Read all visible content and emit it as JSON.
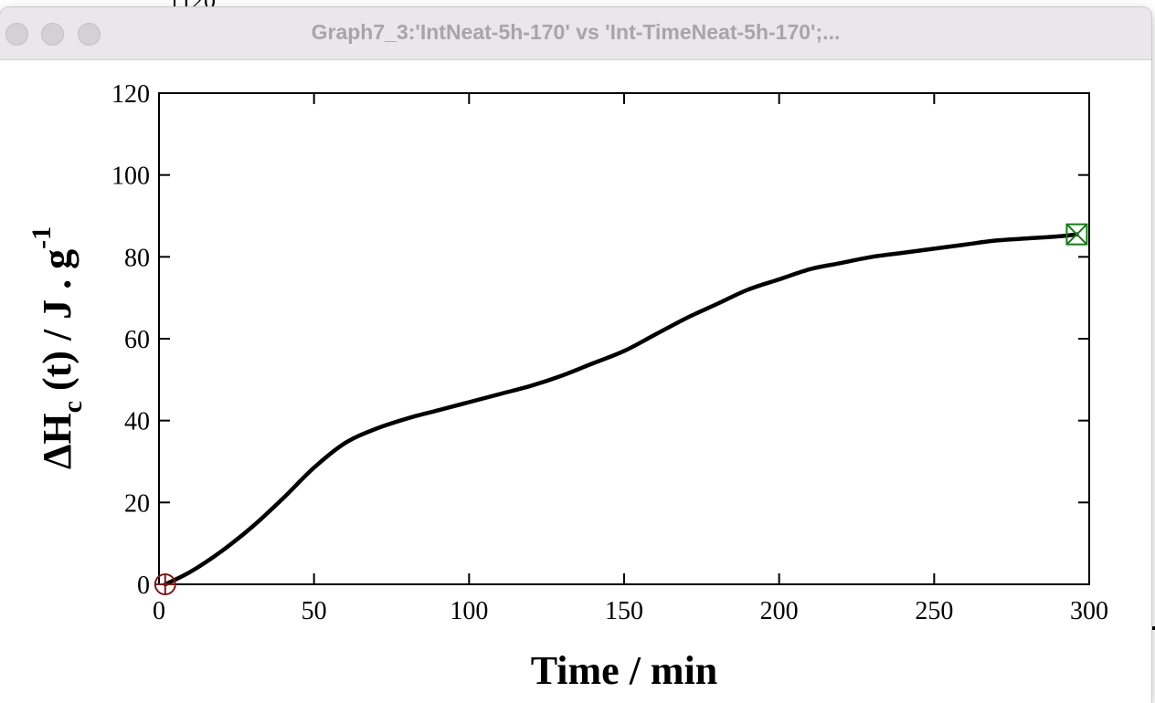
{
  "window": {
    "title": "Graph7_3:'IntNeat-5h-170' vs 'Int-TimeNeat-5h-170';..."
  },
  "background_window": {
    "partial_tick_label": "120"
  },
  "chart_data": {
    "type": "line",
    "xlabel": "Time / min",
    "ylabel": {
      "base": "ΔH",
      "subscript": "c",
      "rest": " (t) / J . g",
      "superscript": "-1"
    },
    "xlim": [
      0,
      300
    ],
    "ylim": [
      0,
      120
    ],
    "xticks": [
      0,
      50,
      100,
      150,
      200,
      250,
      300
    ],
    "yticks": [
      0,
      20,
      40,
      60,
      80,
      100,
      120
    ],
    "grid": false,
    "series": [
      {
        "color": "#000000",
        "x": [
          2,
          10,
          20,
          30,
          40,
          50,
          60,
          70,
          80,
          90,
          100,
          110,
          120,
          130,
          140,
          150,
          160,
          170,
          180,
          190,
          200,
          210,
          220,
          230,
          240,
          250,
          260,
          270,
          280,
          290,
          296
        ],
        "y": [
          0,
          3,
          8,
          14,
          21,
          28.5,
          34.5,
          38,
          40.5,
          42.5,
          44.5,
          46.5,
          48.5,
          51,
          54,
          57,
          61,
          65,
          68.5,
          72,
          74.5,
          77,
          78.5,
          80,
          81,
          82,
          83,
          84,
          84.5,
          85,
          85.5
        ]
      }
    ],
    "markers": [
      {
        "name": "start-cursor",
        "x": 2,
        "y": 0,
        "color": "#7a1a1a"
      },
      {
        "name": "end-cursor",
        "x": 296,
        "y": 85.5,
        "color": "#1a7a1a"
      }
    ]
  }
}
